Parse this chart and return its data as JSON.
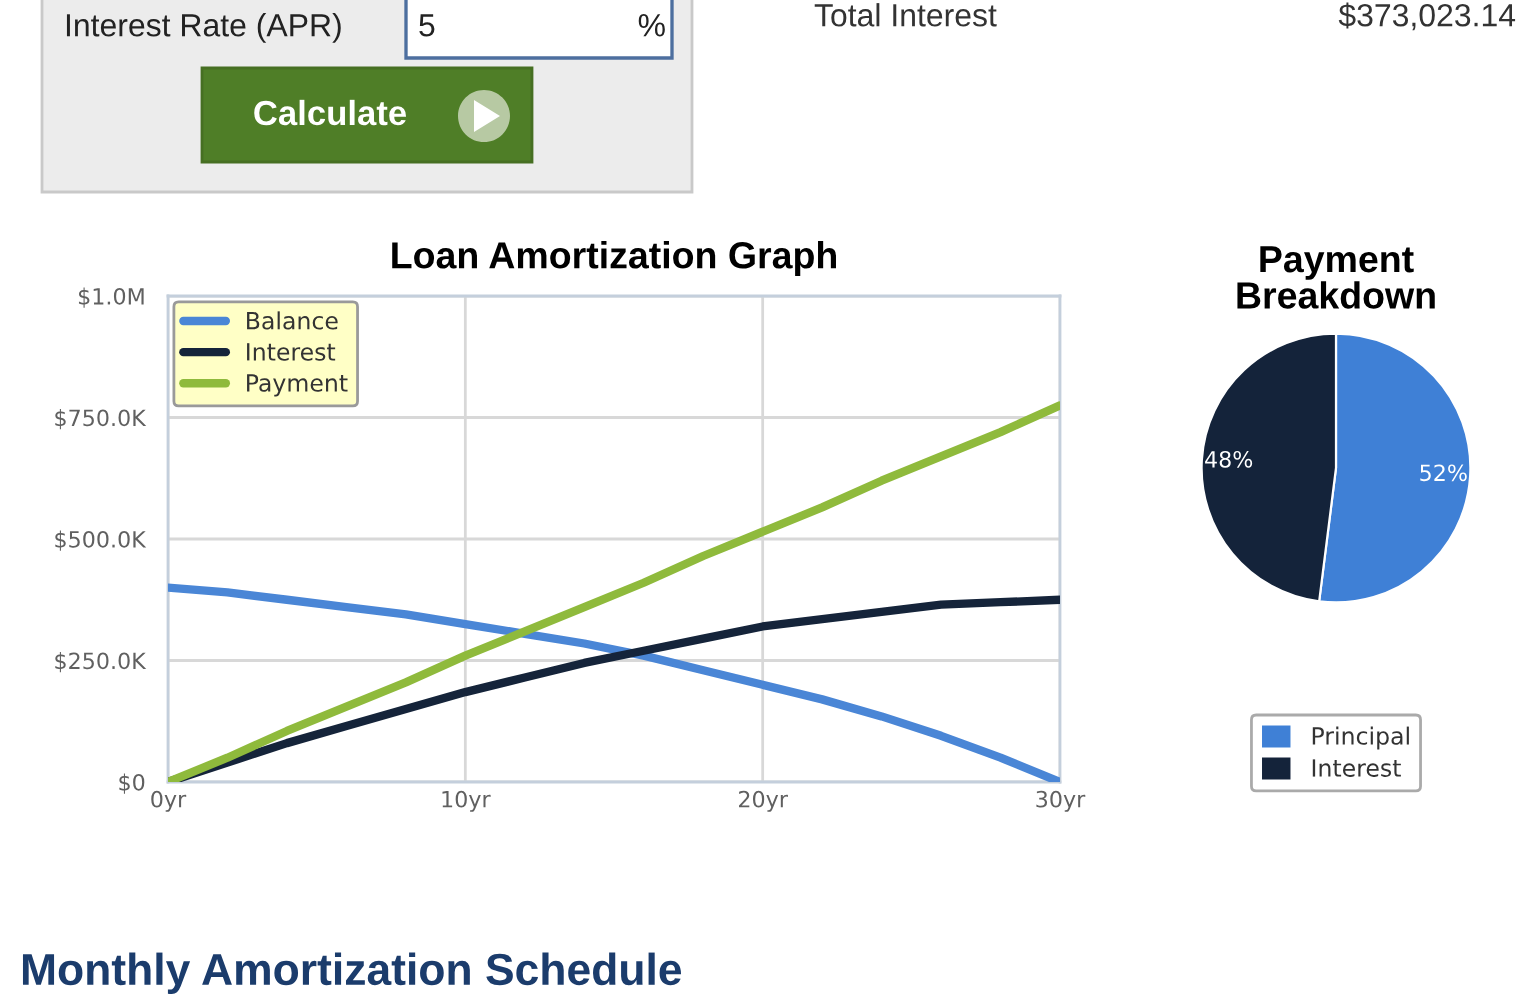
{
  "chart_data": [
    {
      "type": "other",
      "annotations": [
        "Interest Rate (APR)",
        "5",
        "%",
        "Calculate",
        "Total Interest",
        "$373,023.14"
      ]
    },
    {
      "type": "line",
      "title": "Loan Amortization Graph",
      "x": [
        0,
        2,
        4,
        6,
        8,
        10,
        12,
        14,
        16,
        18,
        20,
        22,
        24,
        26,
        28,
        30
      ],
      "series": [
        {
          "name": "Balance",
          "color": "#4a86d6",
          "values": [
            400000,
            390000,
            375000,
            360000,
            345000,
            325000,
            305000,
            285000,
            260000,
            230000,
            200000,
            170000,
            135000,
            95000,
            50000,
            0
          ]
        },
        {
          "name": "Interest",
          "color": "#15243a",
          "values": [
            0,
            40000,
            80000,
            115000,
            150000,
            185000,
            215000,
            245000,
            270000,
            295000,
            320000,
            335000,
            350000,
            365000,
            370000,
            375000
          ]
        },
        {
          "name": "Payment",
          "color": "#8fba3c",
          "values": [
            0,
            50000,
            105000,
            155000,
            205000,
            260000,
            310000,
            360000,
            410000,
            465000,
            515000,
            565000,
            620000,
            670000,
            720000,
            775000
          ]
        }
      ],
      "xlim": [
        0,
        30
      ],
      "ylim": [
        0,
        1000000
      ],
      "xticks": [
        {
          "value": 0,
          "label": "0yr"
        },
        {
          "value": 10,
          "label": "10yr"
        },
        {
          "value": 20,
          "label": "20yr"
        },
        {
          "value": 30,
          "label": "30yr"
        }
      ],
      "yticks": [
        {
          "value": 0,
          "label": "$0"
        },
        {
          "value": 250000,
          "label": "$250.0K"
        },
        {
          "value": 500000,
          "label": "$500.0K"
        },
        {
          "value": 750000,
          "label": "$750.0K"
        },
        {
          "value": 1000000,
          "label": "$1.0M"
        }
      ],
      "grid": true,
      "legend": "top left"
    },
    {
      "type": "pie",
      "title": "Payment\nBreakdown",
      "categories": [
        "Principal",
        "Interest"
      ],
      "values": [
        52,
        48
      ],
      "value_labels": [
        "52%",
        "48%"
      ],
      "colors": [
        "#3f80d6",
        "#14233a"
      ],
      "legend": "bottom"
    },
    {
      "type": "other",
      "title": "Monthly Amortization Schedule"
    }
  ]
}
